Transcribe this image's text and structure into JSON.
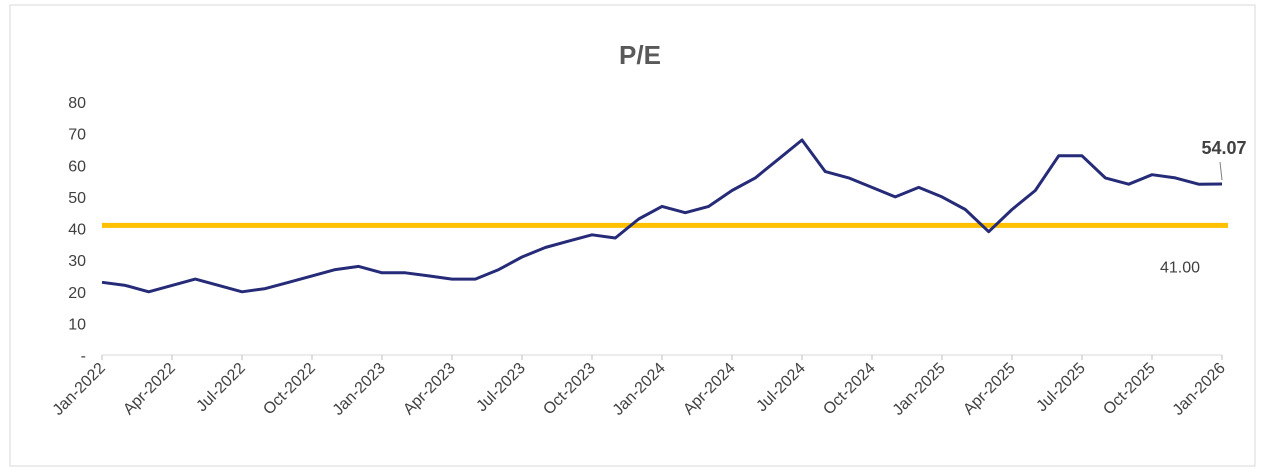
{
  "chart_data": {
    "type": "line",
    "title": "P/E",
    "categories": [
      "Jan-2022",
      null,
      null,
      "Apr-2022",
      null,
      null,
      "Jul-2022",
      null,
      null,
      "Oct-2022",
      null,
      null,
      "Jan-2023",
      null,
      null,
      "Apr-2023",
      null,
      null,
      "Jul-2023",
      null,
      null,
      "Oct-2023",
      null,
      null,
      "Jan-2024",
      null,
      null,
      "Apr-2024",
      null,
      null,
      "Jul-2024",
      null,
      null,
      "Oct-2024",
      null,
      null,
      "Jan-2025",
      null,
      null,
      "Apr-2025",
      null,
      null,
      "Jul-2025",
      null,
      null,
      "Oct-2025",
      null,
      null,
      "Jan-2026"
    ],
    "series": [
      {
        "name": "P/E",
        "color": "#262b78",
        "values": [
          23,
          22,
          20,
          22,
          24,
          22,
          20,
          21,
          23,
          25,
          27,
          28,
          26,
          26,
          25,
          24,
          24,
          27,
          31,
          34,
          36,
          38,
          37,
          43,
          47,
          45,
          47,
          52,
          56,
          62,
          68,
          58,
          56,
          53,
          50,
          53,
          50,
          46,
          39,
          46,
          52,
          63,
          63,
          56,
          54,
          57,
          56,
          54,
          54.07
        ]
      }
    ],
    "reference_line": {
      "value": 41,
      "label": "41.00",
      "color": "#ffc000"
    },
    "ylim": [
      0,
      80
    ],
    "yticks": [
      {
        "value": 0,
        "label": "-"
      },
      10,
      20,
      30,
      40,
      50,
      60,
      70,
      80
    ]
  }
}
